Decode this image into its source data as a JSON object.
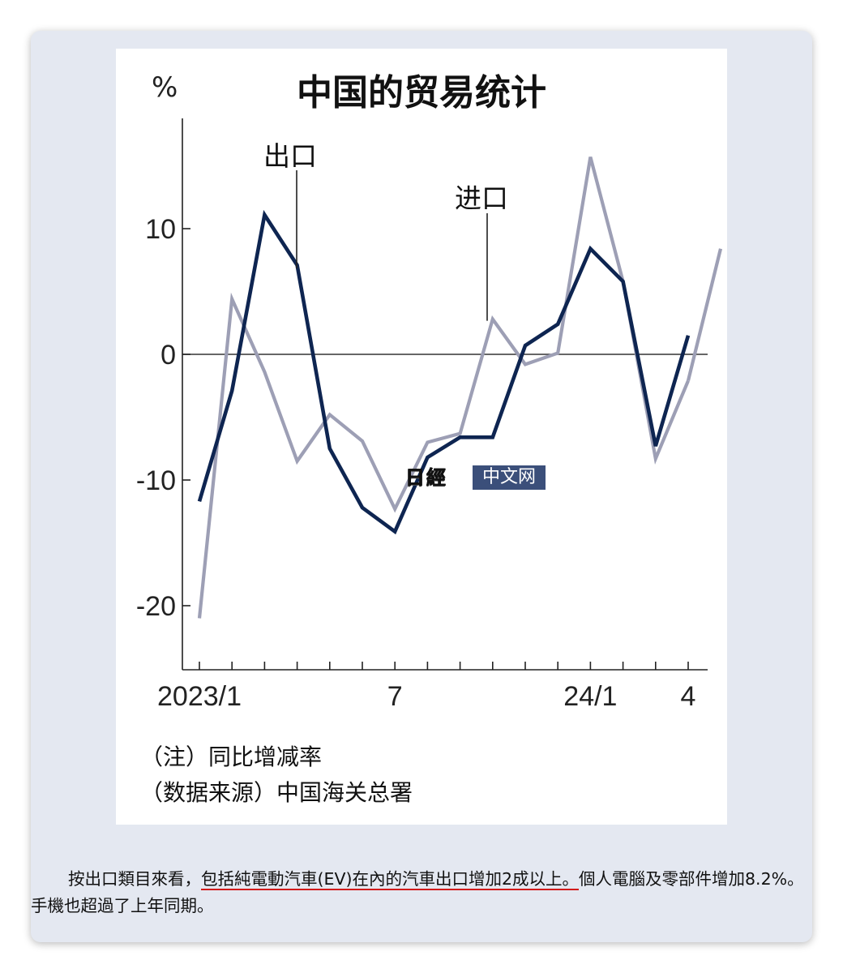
{
  "chart_data": {
    "type": "line",
    "title": "中国的贸易统计",
    "ylabel": "%",
    "ylim": [
      -25,
      19
    ],
    "yticks": [
      -20,
      -10,
      0,
      10
    ],
    "ytick_labels": [
      "-20",
      "-10",
      "0",
      "10"
    ],
    "x": [
      "2023/1",
      "2023/2",
      "2023/3",
      "2023/4",
      "2023/5",
      "2023/6",
      "2023/7",
      "2023/8",
      "2023/9",
      "2023/10",
      "2023/11",
      "2023/12",
      "24/1",
      "24/2",
      "24/3",
      "24/4"
    ],
    "xtick_labels": [
      {
        "index": 0,
        "label": "2023/1"
      },
      {
        "index": 6,
        "label": "7"
      },
      {
        "index": 12,
        "label": "24/1"
      },
      {
        "index": 15,
        "label": "4"
      }
    ],
    "series": [
      {
        "name": "出口",
        "color": "#0e2551",
        "values": [
          -11.7,
          -2.9,
          11.1,
          7.1,
          -7.5,
          -12.2,
          -14.1,
          -8.2,
          -6.6,
          -6.6,
          0.7,
          2.4,
          8.4,
          5.8,
          -7.3,
          1.5
        ]
      },
      {
        "name": "进口",
        "color": "#9d9fb5",
        "values": [
          -21.0,
          4.4,
          -1.4,
          -8.5,
          -4.8,
          -6.9,
          -12.3,
          -7.0,
          -6.3,
          2.8,
          -0.8,
          0.1,
          15.7,
          5.8,
          -8.3,
          -2.1
        ]
      },
      {
        "name": "进口",
        "color": "#9d9fb5",
        "values_tail": [
          8.4
        ]
      }
    ],
    "zero_line": true,
    "grid": false
  },
  "chart": {
    "title": "中国的贸易统计",
    "unit": "%",
    "series_labels": {
      "export": "出口",
      "import": "进口"
    },
    "notes": [
      "（注）同比增减率",
      "（数据来源）中国海关总署"
    ]
  },
  "watermark": {
    "logo_text": "日經",
    "text": "中文网"
  },
  "caption": {
    "part1": "按出口類目來看，",
    "highlight": "包括純電動汽車(EV)在內的汽車出口增加2成以上。",
    "part2": "個人電腦及零部件增加8.2%。手機也超過了上年同期。"
  },
  "colors": {
    "export_line": "#0e2551",
    "import_line": "#9d9fb5",
    "card_bg": "#e4e8f1",
    "highlight_underline": "#d21a1a",
    "watermark_bg": "#3b4f7a"
  }
}
